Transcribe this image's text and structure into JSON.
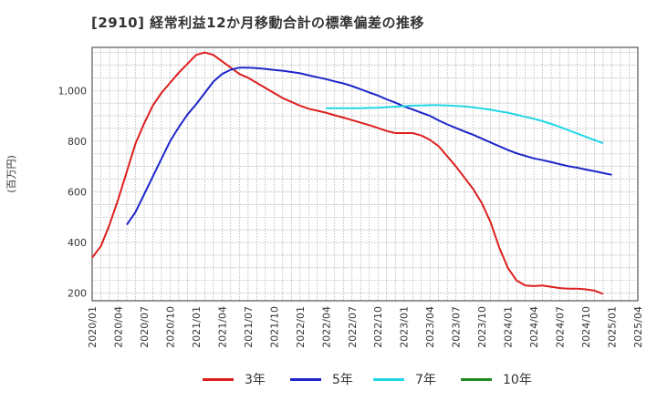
{
  "title": "[2910]  経常利益12か月移動合計の標準偏差の推移",
  "chart_data": {
    "type": "line",
    "ylabel": "(百万円)",
    "ylim": [
      170,
      1170
    ],
    "yticks": [
      200,
      400,
      600,
      800,
      1000
    ],
    "ytick_labels": [
      "200",
      "400",
      "600",
      "800",
      "1,000"
    ],
    "xticks": [
      "2020/01",
      "2020/04",
      "2020/07",
      "2020/10",
      "2021/01",
      "2021/04",
      "2021/07",
      "2021/10",
      "2022/01",
      "2022/04",
      "2022/07",
      "2022/10",
      "2023/01",
      "2023/04",
      "2023/07",
      "2023/10",
      "2024/01",
      "2024/04",
      "2024/07",
      "2024/10",
      "2025/01",
      "2025/04"
    ],
    "grid": true,
    "legend_position": "bottom",
    "series": [
      {
        "name": "3年",
        "color": "#dd1f1f",
        "x_start": "2020/01",
        "values": [
          340,
          385,
          470,
          570,
          680,
          790,
          870,
          940,
          990,
          1030,
          1070,
          1105,
          1140,
          1150,
          1140,
          1115,
          1090,
          1065,
          1050,
          1030,
          1010,
          990,
          970,
          955,
          940,
          928,
          920,
          912,
          902,
          893,
          883,
          873,
          863,
          852,
          840,
          832,
          832,
          832,
          822,
          805,
          780,
          740,
          700,
          655,
          610,
          555,
          480,
          380,
          300,
          250,
          230,
          228,
          230,
          225,
          220,
          218,
          218,
          215,
          210,
          197
        ]
      },
      {
        "name": "5年",
        "color": "#1d26c8",
        "x_start": "2020/05",
        "values": [
          470,
          520,
          590,
          660,
          730,
          800,
          855,
          905,
          945,
          990,
          1035,
          1065,
          1082,
          1090,
          1090,
          1088,
          1085,
          1081,
          1078,
          1073,
          1068,
          1060,
          1052,
          1045,
          1036,
          1028,
          1017,
          1005,
          992,
          980,
          965,
          952,
          937,
          925,
          912,
          900,
          882,
          866,
          852,
          838,
          825,
          810,
          795,
          780,
          765,
          752,
          742,
          732,
          725,
          717,
          709,
          701,
          695,
          688,
          681,
          674,
          667
        ]
      },
      {
        "name": "7年",
        "color": "#22d6e6",
        "x_start": "2022/04",
        "values": [
          930,
          930,
          930,
          930,
          930,
          931,
          932,
          934,
          936,
          938,
          940,
          941,
          942,
          942,
          941,
          939,
          937,
          933,
          929,
          924,
          918,
          912,
          904,
          896,
          888,
          879,
          868,
          856,
          843,
          830,
          817,
          804,
          792
        ]
      },
      {
        "name": "10年",
        "color": "#1f8a1f",
        "x_start": "2020/01",
        "values": []
      }
    ]
  }
}
